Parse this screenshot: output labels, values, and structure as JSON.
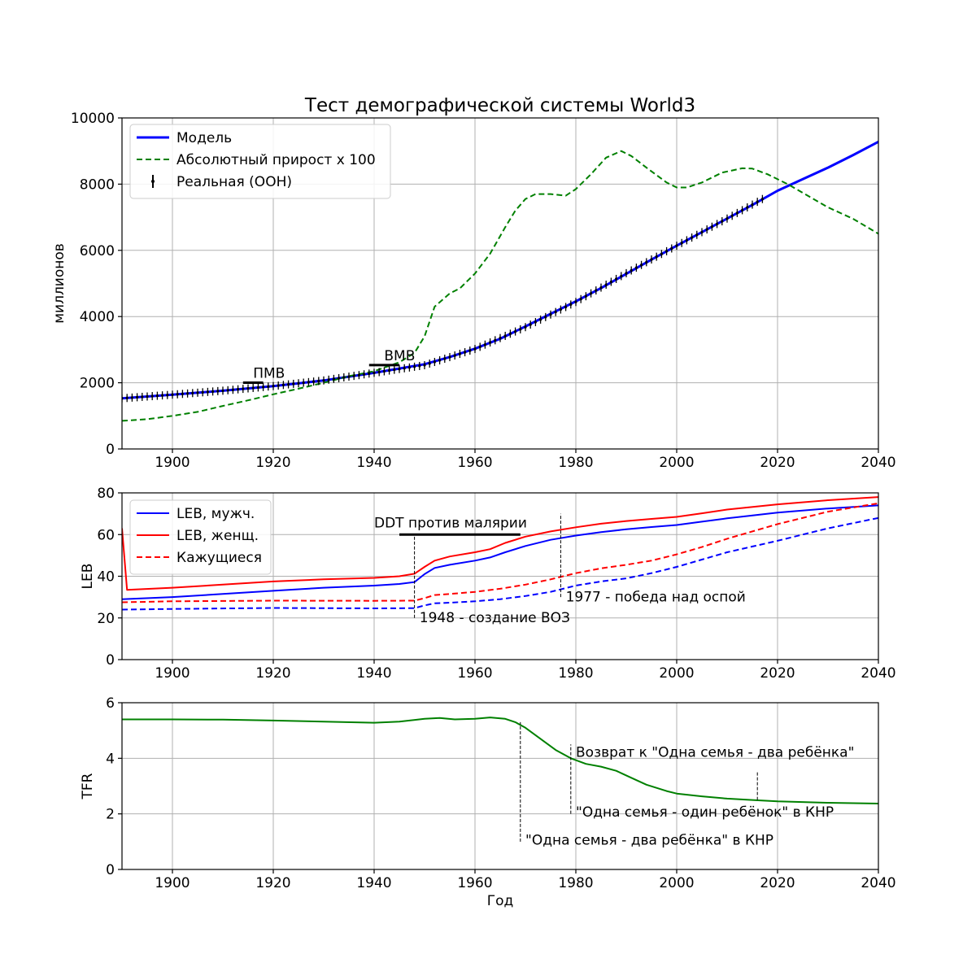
{
  "chart_data": [
    {
      "type": "line",
      "title": "Тест демографической системы World3",
      "xlabel": "",
      "ylabel": "миллионов",
      "xlim": [
        1890,
        2040
      ],
      "ylim": [
        0,
        10000
      ],
      "xticks": [
        1900,
        1920,
        1940,
        1960,
        1980,
        2000,
        2020,
        2040
      ],
      "yticks": [
        0,
        2000,
        4000,
        6000,
        8000,
        10000
      ],
      "grid": true,
      "legend": "top-left",
      "series": [
        {
          "name": "Модель",
          "color": "#0000ff",
          "style": "solid",
          "points": [
            [
              1890,
              1530
            ],
            [
              1900,
              1640
            ],
            [
              1910,
              1760
            ],
            [
              1920,
              1900
            ],
            [
              1930,
              2070
            ],
            [
              1940,
              2300
            ],
            [
              1945,
              2430
            ],
            [
              1950,
              2560
            ],
            [
              1955,
              2780
            ],
            [
              1960,
              3030
            ],
            [
              1965,
              3330
            ],
            [
              1970,
              3700
            ],
            [
              1975,
              4080
            ],
            [
              1980,
              4460
            ],
            [
              1985,
              4860
            ],
            [
              1990,
              5290
            ],
            [
              1995,
              5720
            ],
            [
              2000,
              6140
            ],
            [
              2005,
              6550
            ],
            [
              2010,
              6960
            ],
            [
              2015,
              7370
            ],
            [
              2020,
              7800
            ],
            [
              2025,
              8150
            ],
            [
              2030,
              8500
            ],
            [
              2035,
              8880
            ],
            [
              2040,
              9280
            ]
          ]
        },
        {
          "name": "Абсолютный прирост х 100",
          "color": "#008000",
          "style": "dashed",
          "points": [
            [
              1890,
              850
            ],
            [
              1895,
              900
            ],
            [
              1900,
              1000
            ],
            [
              1905,
              1120
            ],
            [
              1910,
              1300
            ],
            [
              1915,
              1470
            ],
            [
              1920,
              1650
            ],
            [
              1925,
              1820
            ],
            [
              1930,
              2000
            ],
            [
              1935,
              2200
            ],
            [
              1940,
              2350
            ],
            [
              1945,
              2620
            ],
            [
              1948,
              2900
            ],
            [
              1950,
              3400
            ],
            [
              1952,
              4300
            ],
            [
              1955,
              4700
            ],
            [
              1957,
              4850
            ],
            [
              1960,
              5300
            ],
            [
              1963,
              5900
            ],
            [
              1966,
              6700
            ],
            [
              1968,
              7200
            ],
            [
              1970,
              7550
            ],
            [
              1972,
              7700
            ],
            [
              1975,
              7700
            ],
            [
              1978,
              7650
            ],
            [
              1980,
              7850
            ],
            [
              1983,
              8300
            ],
            [
              1986,
              8800
            ],
            [
              1989,
              9000
            ],
            [
              1991,
              8850
            ],
            [
              1994,
              8500
            ],
            [
              1998,
              8050
            ],
            [
              2000,
              7900
            ],
            [
              2002,
              7900
            ],
            [
              2005,
              8050
            ],
            [
              2009,
              8350
            ],
            [
              2013,
              8480
            ],
            [
              2015,
              8470
            ],
            [
              2018,
              8300
            ],
            [
              2022,
              8000
            ],
            [
              2026,
              7650
            ],
            [
              2030,
              7300
            ],
            [
              2035,
              6950
            ],
            [
              2040,
              6500
            ]
          ]
        },
        {
          "name": "Реальная (ООН)",
          "color": "#000000",
          "style": "errorbar",
          "x_range": [
            1890,
            2017
          ],
          "points": [
            [
              1890,
              1530
            ],
            [
              1900,
              1640
            ],
            [
              1910,
              1760
            ],
            [
              1920,
              1900
            ],
            [
              1930,
              2070
            ],
            [
              1940,
              2300
            ],
            [
              1950,
              2530
            ],
            [
              1960,
              3020
            ],
            [
              1970,
              3680
            ],
            [
              1980,
              4440
            ],
            [
              1990,
              5310
            ],
            [
              2000,
              6140
            ],
            [
              2010,
              6960
            ],
            [
              2017,
              7550
            ]
          ]
        }
      ],
      "annotations": [
        {
          "text": "ПМВ",
          "x": 1916,
          "y": 2150,
          "span": [
            1914,
            1918
          ]
        },
        {
          "text": "ВМВ",
          "x": 1942,
          "y": 2680,
          "span": [
            1939,
            1945
          ]
        }
      ]
    },
    {
      "type": "line",
      "title": "",
      "xlabel": "",
      "ylabel": "LEB",
      "xlim": [
        1890,
        2040
      ],
      "ylim": [
        0,
        80
      ],
      "xticks": [
        1900,
        1920,
        1940,
        1960,
        1980,
        2000,
        2020,
        2040
      ],
      "yticks": [
        0,
        20,
        40,
        60,
        80
      ],
      "grid": true,
      "legend": "top-left",
      "series": [
        {
          "name": "LEB, мужч.",
          "color": "#0000ff",
          "style": "solid",
          "points": [
            [
              1890,
              29
            ],
            [
              1900,
              30
            ],
            [
              1910,
              31.5
            ],
            [
              1920,
              33
            ],
            [
              1930,
              34.5
            ],
            [
              1940,
              35.5
            ],
            [
              1945,
              36.3
            ],
            [
              1948,
              37.2
            ],
            [
              1950,
              41
            ],
            [
              1952,
              44
            ],
            [
              1955,
              45.5
            ],
            [
              1960,
              47.5
            ],
            [
              1963,
              49
            ],
            [
              1966,
              51.5
            ],
            [
              1970,
              54.5
            ],
            [
              1975,
              57.5
            ],
            [
              1980,
              59.5
            ],
            [
              1985,
              61.2
            ],
            [
              1990,
              62.5
            ],
            [
              1995,
              63.6
            ],
            [
              2000,
              64.6
            ],
            [
              2005,
              66.2
            ],
            [
              2010,
              67.8
            ],
            [
              2020,
              70.5
            ],
            [
              2030,
              72.5
            ],
            [
              2040,
              74
            ]
          ]
        },
        {
          "name": "LEB, женщ.",
          "color": "#ff0000",
          "style": "solid",
          "points": [
            [
              1890,
              63
            ],
            [
              1891,
              33.5
            ],
            [
              1900,
              34.5
            ],
            [
              1910,
              36
            ],
            [
              1920,
              37.5
            ],
            [
              1930,
              38.5
            ],
            [
              1940,
              39.2
            ],
            [
              1945,
              40
            ],
            [
              1948,
              41.2
            ],
            [
              1950,
              44.5
            ],
            [
              1952,
              47.5
            ],
            [
              1955,
              49.5
            ],
            [
              1960,
              51.5
            ],
            [
              1963,
              53
            ],
            [
              1966,
              56
            ],
            [
              1970,
              59
            ],
            [
              1975,
              61.5
            ],
            [
              1980,
              63.5
            ],
            [
              1985,
              65.2
            ],
            [
              1990,
              66.5
            ],
            [
              1995,
              67.5
            ],
            [
              2000,
              68.5
            ],
            [
              2005,
              70.2
            ],
            [
              2010,
              72
            ],
            [
              2020,
              74.5
            ],
            [
              2030,
              76.5
            ],
            [
              2040,
              78
            ]
          ]
        },
        {
          "name": "Кажущиеся",
          "color": "#ff0000",
          "style": "dashed",
          "points": [
            [
              1890,
              27.5
            ],
            [
              1900,
              28
            ],
            [
              1920,
              28.3
            ],
            [
              1940,
              28.2
            ],
            [
              1948,
              28.3
            ],
            [
              1950,
              29.5
            ],
            [
              1952,
              31
            ],
            [
              1955,
              31.5
            ],
            [
              1960,
              32.5
            ],
            [
              1965,
              34
            ],
            [
              1970,
              36
            ],
            [
              1975,
              38.5
            ],
            [
              1980,
              41.5
            ],
            [
              1985,
              43.8
            ],
            [
              1990,
              45.5
            ],
            [
              1995,
              47.5
            ],
            [
              2000,
              50.5
            ],
            [
              2005,
              54
            ],
            [
              2010,
              58
            ],
            [
              2020,
              65
            ],
            [
              2030,
              71
            ],
            [
              2040,
              75
            ]
          ]
        },
        {
          "name": "",
          "color": "#0000ff",
          "style": "dashed",
          "points": [
            [
              1890,
              24
            ],
            [
              1900,
              24.3
            ],
            [
              1920,
              24.8
            ],
            [
              1940,
              24.6
            ],
            [
              1948,
              24.7
            ],
            [
              1950,
              26
            ],
            [
              1952,
              27
            ],
            [
              1955,
              27.3
            ],
            [
              1960,
              28
            ],
            [
              1965,
              29
            ],
            [
              1970,
              30.5
            ],
            [
              1975,
              32.5
            ],
            [
              1980,
              35.5
            ],
            [
              1985,
              37.5
            ],
            [
              1990,
              39
            ],
            [
              1995,
              41.5
            ],
            [
              2000,
              44.5
            ],
            [
              2005,
              48
            ],
            [
              2010,
              51.5
            ],
            [
              2020,
              57
            ],
            [
              2030,
              63
            ],
            [
              2040,
              68
            ]
          ]
        }
      ],
      "annotations": [
        {
          "text": "DDT против малярии",
          "x": 1940,
          "y": 63.5,
          "span": [
            1945,
            1969
          ],
          "span_y": 60
        },
        {
          "text": "1948 - создание ВОЗ",
          "x": 1949,
          "y": 18,
          "vline": 1948,
          "vline_y": [
            20,
            59
          ]
        },
        {
          "text": "1977 - победа над оспой",
          "x": 1978,
          "y": 28,
          "vline": 1977,
          "vline_y": [
            30,
            70
          ]
        }
      ]
    },
    {
      "type": "line",
      "title": "",
      "xlabel": "Год",
      "ylabel": "TFR",
      "xlim": [
        1890,
        2040
      ],
      "ylim": [
        0,
        6
      ],
      "xticks": [
        1900,
        1920,
        1940,
        1960,
        1980,
        2000,
        2020,
        2040
      ],
      "yticks": [
        0,
        2,
        4,
        6
      ],
      "grid": true,
      "series": [
        {
          "name": "",
          "color": "#008000",
          "style": "solid",
          "points": [
            [
              1890,
              5.4
            ],
            [
              1900,
              5.4
            ],
            [
              1910,
              5.39
            ],
            [
              1920,
              5.36
            ],
            [
              1930,
              5.32
            ],
            [
              1940,
              5.28
            ],
            [
              1945,
              5.32
            ],
            [
              1950,
              5.42
            ],
            [
              1953,
              5.45
            ],
            [
              1956,
              5.4
            ],
            [
              1960,
              5.42
            ],
            [
              1963,
              5.47
            ],
            [
              1966,
              5.42
            ],
            [
              1968,
              5.3
            ],
            [
              1970,
              5.1
            ],
            [
              1973,
              4.7
            ],
            [
              1976,
              4.3
            ],
            [
              1979,
              4.0
            ],
            [
              1982,
              3.8
            ],
            [
              1985,
              3.7
            ],
            [
              1988,
              3.55
            ],
            [
              1991,
              3.3
            ],
            [
              1994,
              3.05
            ],
            [
              1998,
              2.82
            ],
            [
              2000,
              2.73
            ],
            [
              2005,
              2.63
            ],
            [
              2010,
              2.55
            ],
            [
              2015,
              2.5
            ],
            [
              2020,
              2.45
            ],
            [
              2030,
              2.4
            ],
            [
              2040,
              2.37
            ]
          ]
        }
      ],
      "annotations": [
        {
          "text": "Возврат к \"Одна семья - два ребёнка\"",
          "x": 1980,
          "y": 4.05,
          "vline": 1979,
          "vline_y": [
            2.0,
            4.5
          ]
        },
        {
          "text": "\"Одна семья - один ребёнок\" в КНР",
          "x": 1980,
          "y": 1.9,
          "vline": 2016,
          "vline_y": [
            2.5,
            3.5
          ]
        },
        {
          "text": "\"Одна семья - два ребёнка\" в КНР",
          "x": 1970,
          "y": 0.9,
          "vline": 1969,
          "vline_y": [
            1.0,
            5.3
          ]
        }
      ]
    }
  ]
}
